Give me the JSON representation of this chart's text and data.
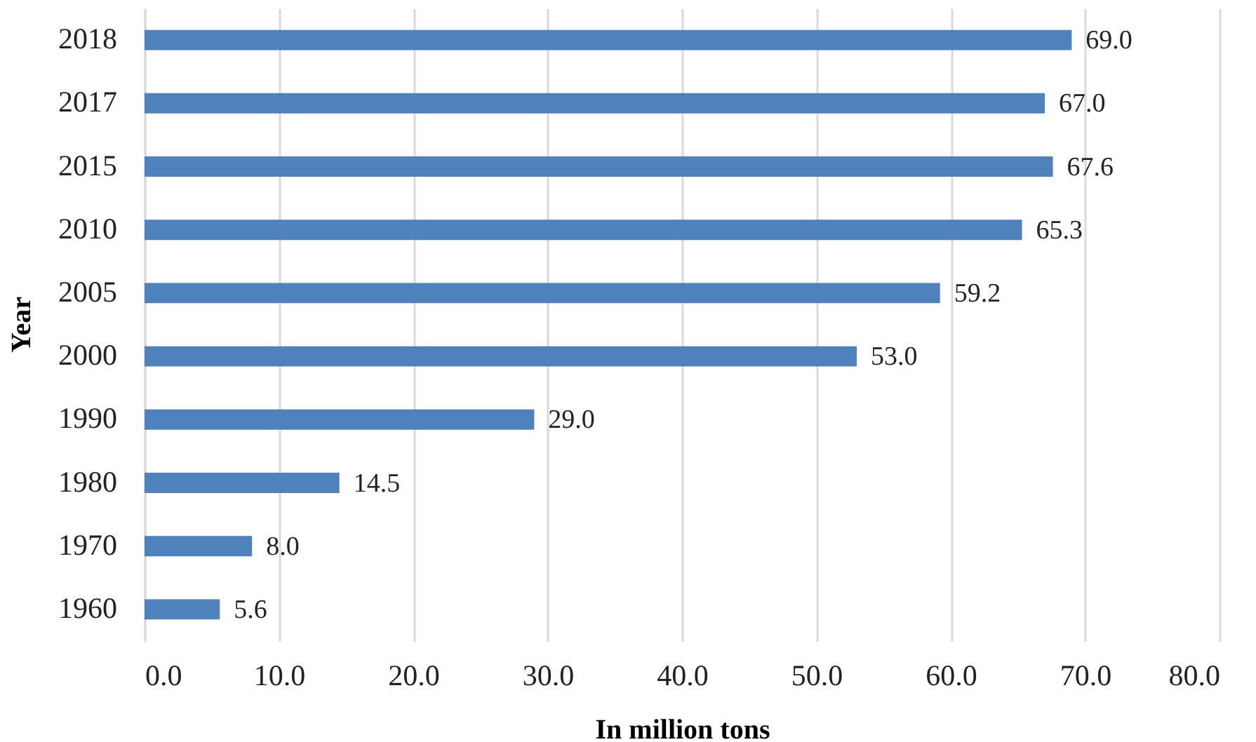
{
  "chart_data": {
    "type": "bar",
    "orientation": "horizontal",
    "xlabel": "In million tons",
    "ylabel": "Year",
    "categories": [
      "2018",
      "2017",
      "2015",
      "2010",
      "2005",
      "2000",
      "1990",
      "1980",
      "1970",
      "1960"
    ],
    "values": [
      69.0,
      67.0,
      67.6,
      65.3,
      59.2,
      53.0,
      29.0,
      14.5,
      8.0,
      5.6
    ],
    "value_labels": [
      "69.0",
      "67.0",
      "67.6",
      "65.3",
      "59.2",
      "53.0",
      "29.0",
      "14.5",
      "8.0",
      "5.6"
    ],
    "color": "#4f81bd",
    "xlim": [
      0,
      80
    ],
    "xticks": [
      {
        "value": 0,
        "label": "0.0"
      },
      {
        "value": 10,
        "label": "10.0"
      },
      {
        "value": 20,
        "label": "20.0"
      },
      {
        "value": 30,
        "label": "30.0"
      },
      {
        "value": 40,
        "label": "40.0"
      },
      {
        "value": 50,
        "label": "50.0"
      },
      {
        "value": 60,
        "label": "60.0"
      },
      {
        "value": 70,
        "label": "70.0"
      },
      {
        "value": 80,
        "label": "80.0"
      }
    ],
    "grid": "x"
  }
}
